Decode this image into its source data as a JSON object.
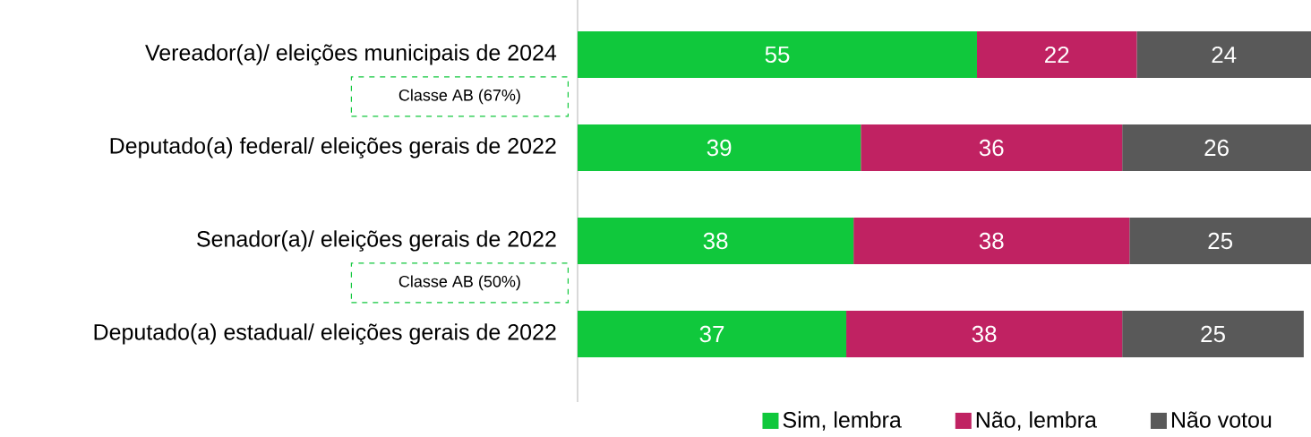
{
  "chart_data": {
    "type": "bar",
    "orientation": "horizontal",
    "stacked": true,
    "data_labels": true,
    "legend": "bottom",
    "categories": [
      "Vereador(a)/ eleições municipais de 2024",
      "Deputado(a) federal/ eleições gerais de 2022",
      "Senador(a)/ eleições gerais de 2022",
      "Deputado(a) estadual/ eleições gerais de 2022"
    ],
    "series": [
      {
        "name": "Sim, lembra",
        "color": "#10c83c",
        "values": [
          55,
          39,
          38,
          37
        ]
      },
      {
        "name": "Não, lembra",
        "color": "#c02262",
        "values": [
          22,
          36,
          38,
          38
        ]
      },
      {
        "name": "Não votou",
        "color": "#595959",
        "values": [
          24,
          26,
          25,
          25
        ]
      }
    ],
    "annotations": [
      "Classe AB (67%)",
      "Classe AB (50%)"
    ]
  }
}
